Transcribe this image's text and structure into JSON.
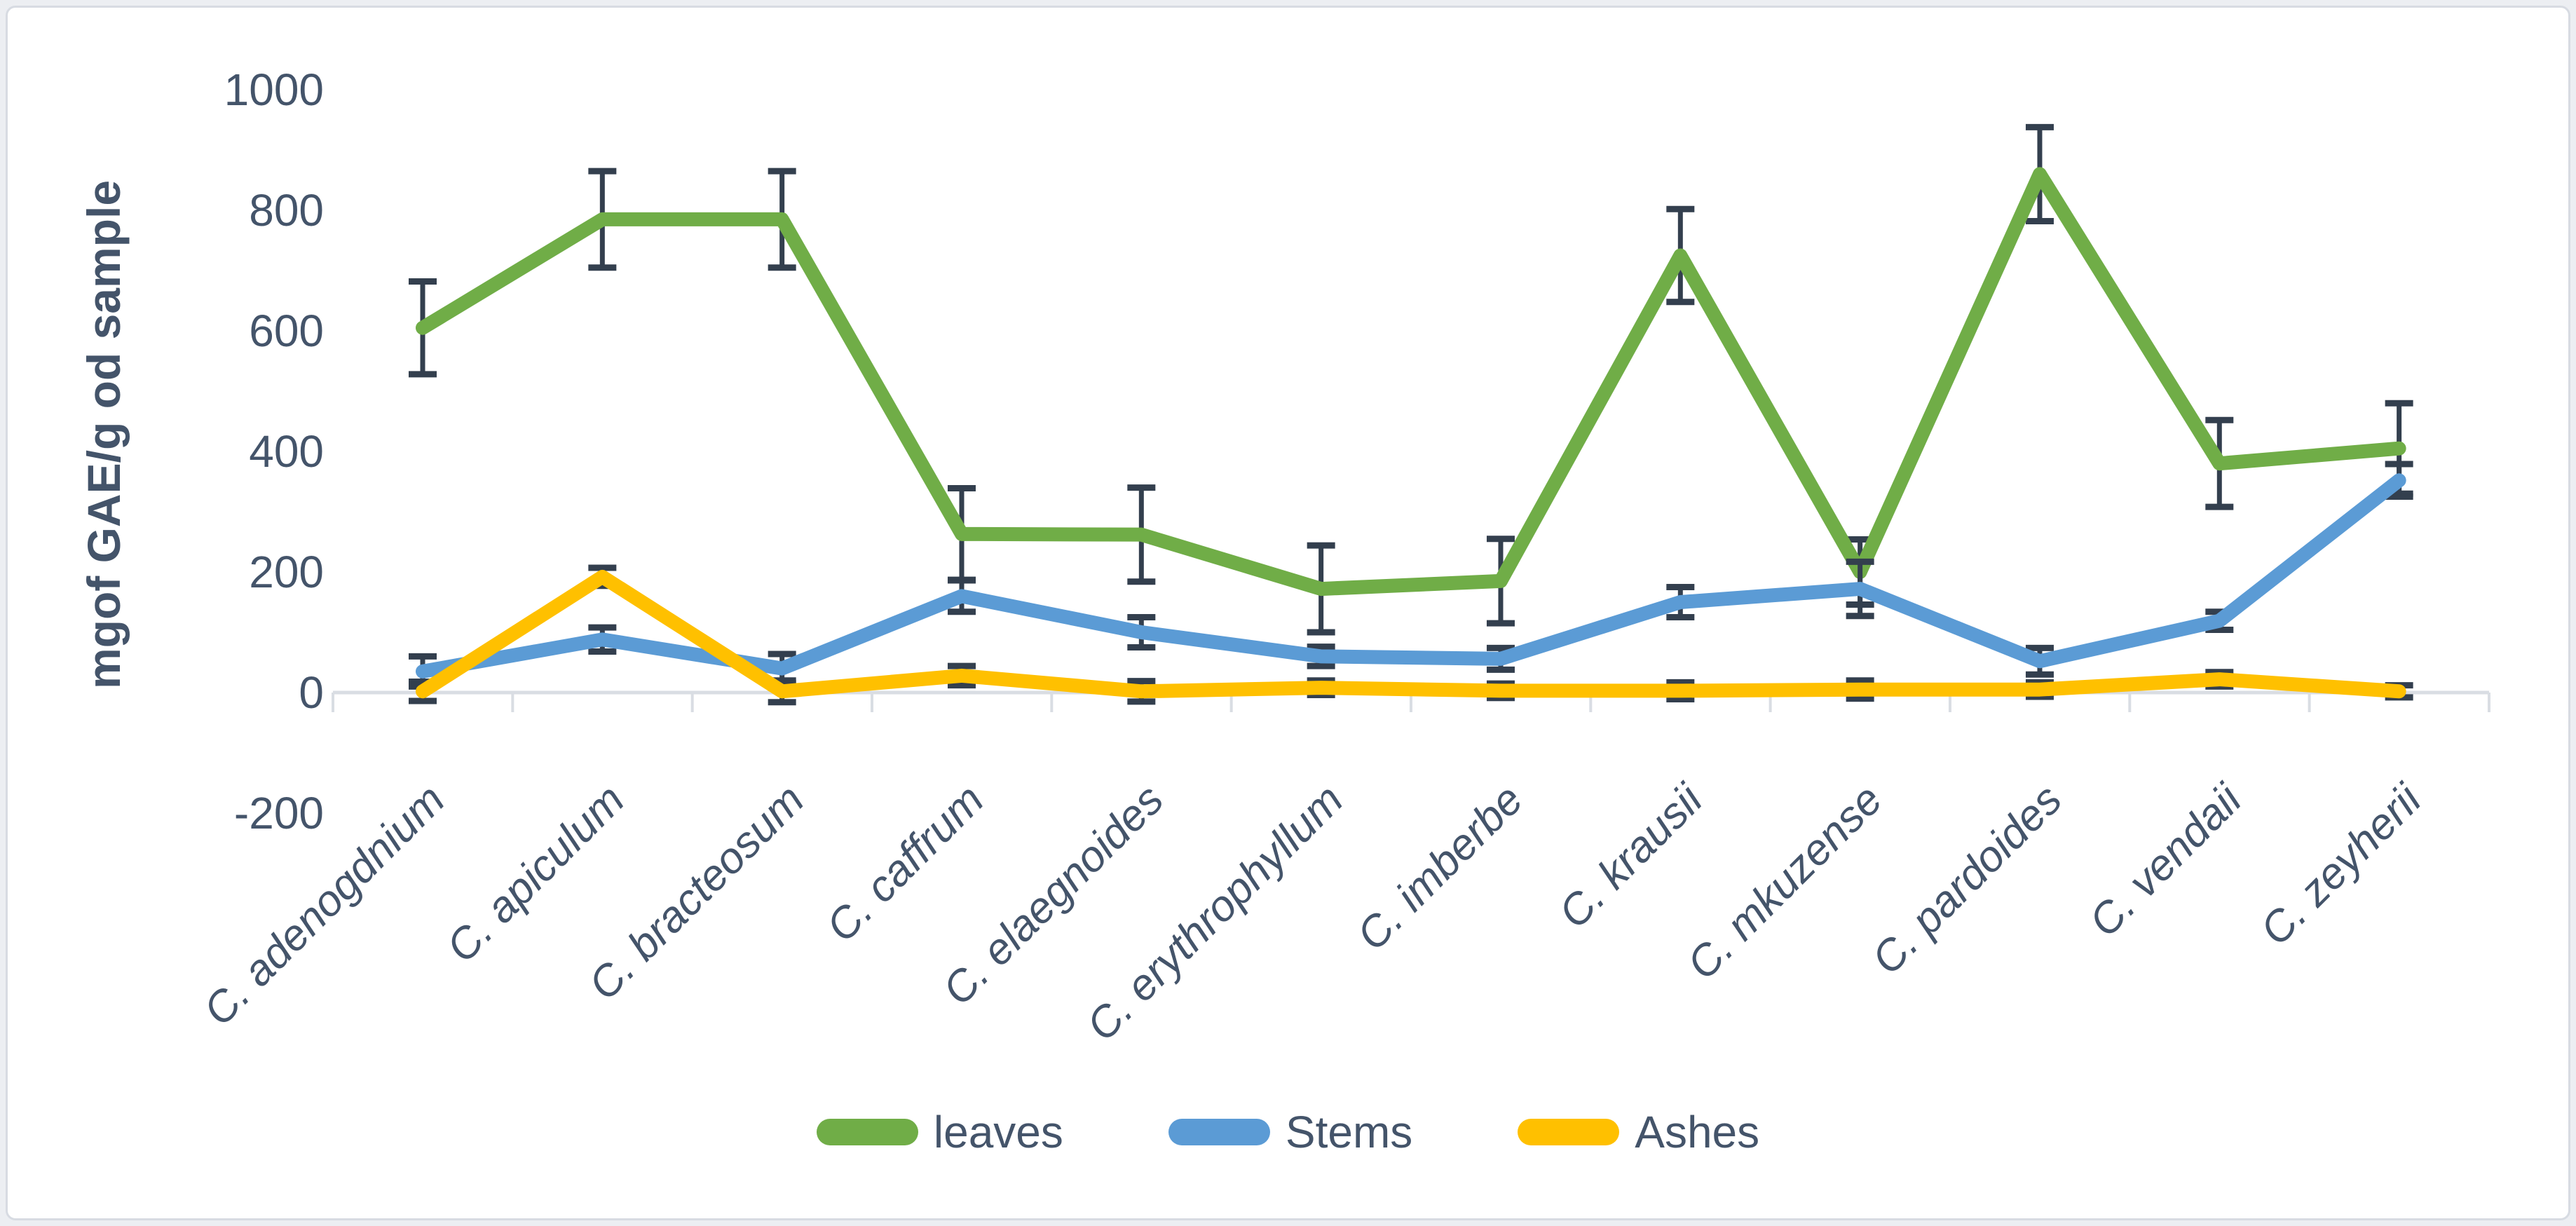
{
  "page": {
    "background": "#ECEEF2",
    "card_background": "#FFFFFF",
    "card_border": "#D7DBE2"
  },
  "chart_data": {
    "type": "line",
    "title": "",
    "xlabel": "",
    "ylabel": "mgof GAE/g od sample",
    "ylim": [
      -200,
      1000
    ],
    "ytick_step": 200,
    "yticks": [
      1000,
      800,
      600,
      400,
      200,
      0,
      -200
    ],
    "grid": false,
    "legend_position": "bottom",
    "error_bars": true,
    "error_bar_color": "#333F4E",
    "axis_color": "#D9DDE3",
    "text_color": "#44546A",
    "categories": [
      "C. adenogdnium",
      "C. apiculum",
      "C. bracteosum",
      "C. caffrum",
      "C. elaegnoides",
      "C. erythrophyllum",
      "C. imberbe",
      "C. krausii",
      "C. mkuzense",
      "C. pardoides",
      "C. vendaii",
      "C. zeyherii"
    ],
    "series": [
      {
        "name": "leaves",
        "color": "#70AD47",
        "values": [
          605,
          785,
          785,
          263,
          262,
          172,
          185,
          725,
          200,
          860,
          380,
          405
        ],
        "errors": [
          77,
          80,
          80,
          76,
          78,
          72,
          70,
          77,
          54,
          78,
          72,
          75
        ]
      },
      {
        "name": "Stems",
        "color": "#5B9BD5",
        "values": [
          35,
          88,
          40,
          160,
          100,
          60,
          56,
          150,
          172,
          52,
          119,
          352
        ],
        "errors": [
          25,
          20,
          24,
          26,
          25,
          16,
          18,
          25,
          45,
          22,
          15,
          27
        ]
      },
      {
        "name": "Ashes",
        "color": "#FFC000",
        "values": [
          2,
          192,
          2,
          28,
          2,
          8,
          3,
          3,
          5,
          5,
          22,
          2
        ],
        "errors": [
          16,
          15,
          18,
          16,
          17,
          12,
          12,
          14,
          15,
          12,
          12,
          10
        ]
      }
    ]
  }
}
